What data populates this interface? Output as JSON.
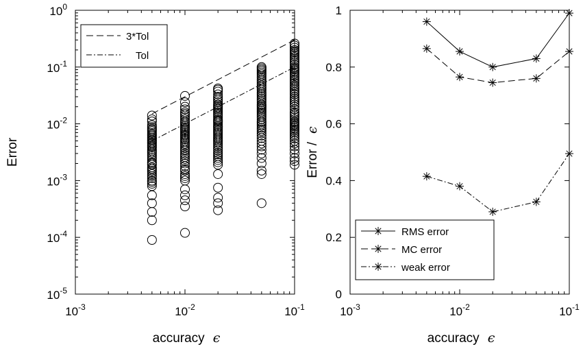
{
  "chart_data": [
    {
      "type": "scatter",
      "xscale": "log",
      "yscale": "log",
      "xlim": [
        0.001,
        0.1
      ],
      "ylim": [
        1e-05,
        1
      ],
      "xlabel": "accuracy",
      "xlabel_symbol": "ϵ",
      "ylabel": "Error",
      "x_ticks": [
        {
          "base": "10",
          "exp": "-3"
        },
        {
          "base": "10",
          "exp": "-2"
        },
        {
          "base": "10",
          "exp": "-1"
        }
      ],
      "y_ticks": [
        {
          "base": "10",
          "exp": "-5"
        },
        {
          "base": "10",
          "exp": "-4"
        },
        {
          "base": "10",
          "exp": "-3"
        },
        {
          "base": "10",
          "exp": "-2"
        },
        {
          "base": "10",
          "exp": "-1"
        },
        {
          "base": "10",
          "exp": "0"
        }
      ],
      "legend": {
        "position": "top-left",
        "entries": [
          "3*Tol",
          "Tol"
        ]
      },
      "reference_lines": [
        {
          "name": "3*Tol",
          "style": "dashed",
          "x": [
            0.005,
            0.1
          ],
          "y": [
            0.015,
            0.3
          ]
        },
        {
          "name": "Tol",
          "style": "dashdot",
          "x": [
            0.005,
            0.1
          ],
          "y": [
            0.005,
            0.1
          ]
        }
      ],
      "scatter_series": [
        {
          "x": 0.005,
          "y": [
            0.014,
            0.012,
            0.011,
            0.0095,
            0.0088,
            0.0082,
            0.0078,
            0.0074,
            0.0069,
            0.0065,
            0.0062,
            0.0058,
            0.0055,
            0.0052,
            0.005,
            0.0047,
            0.0045,
            0.0042,
            0.004,
            0.0038,
            0.0035,
            0.0033,
            0.0031,
            0.0029,
            0.0027,
            0.0025,
            0.0023,
            0.0021,
            0.002,
            0.0019,
            0.0017,
            0.0016,
            0.0015,
            0.0014,
            0.0013,
            0.0012,
            0.0011,
            0.001,
            0.00095,
            0.00088,
            0.0008,
            0.00055,
            0.0004,
            0.00028,
            0.0002,
            9e-05
          ]
        },
        {
          "x": 0.01,
          "y": [
            0.031,
            0.024,
            0.02,
            0.018,
            0.016,
            0.015,
            0.014,
            0.013,
            0.012,
            0.011,
            0.0105,
            0.0098,
            0.0092,
            0.0087,
            0.0082,
            0.0078,
            0.0074,
            0.007,
            0.0066,
            0.0063,
            0.006,
            0.0056,
            0.0053,
            0.005,
            0.0047,
            0.0044,
            0.0041,
            0.0038,
            0.0035,
            0.0033,
            0.003,
            0.0028,
            0.0026,
            0.0024,
            0.0022,
            0.002,
            0.0018,
            0.0016,
            0.0015,
            0.0013,
            0.0012,
            0.0011,
            0.001,
            0.0007,
            0.00055,
            0.00045,
            0.00035,
            0.00012
          ]
        },
        {
          "x": 0.02,
          "y": [
            0.042,
            0.04,
            0.037,
            0.033,
            0.03,
            0.028,
            0.026,
            0.024,
            0.022,
            0.021,
            0.02,
            0.019,
            0.018,
            0.017,
            0.016,
            0.015,
            0.014,
            0.013,
            0.012,
            0.0115,
            0.011,
            0.0105,
            0.0098,
            0.0092,
            0.0088,
            0.0083,
            0.0078,
            0.0074,
            0.007,
            0.0066,
            0.0062,
            0.0058,
            0.0055,
            0.0052,
            0.0049,
            0.0046,
            0.0043,
            0.004,
            0.0037,
            0.0034,
            0.0031,
            0.0029,
            0.0027,
            0.0025,
            0.0023,
            0.0021,
            0.0019,
            0.0013,
            0.00075,
            0.0005,
            0.0004,
            0.0003
          ]
        },
        {
          "x": 0.05,
          "y": [
            0.1,
            0.095,
            0.09,
            0.085,
            0.08,
            0.075,
            0.07,
            0.065,
            0.06,
            0.056,
            0.052,
            0.048,
            0.045,
            0.042,
            0.039,
            0.036,
            0.034,
            0.032,
            0.03,
            0.028,
            0.026,
            0.024,
            0.022,
            0.021,
            0.02,
            0.019,
            0.018,
            0.017,
            0.016,
            0.015,
            0.014,
            0.013,
            0.012,
            0.011,
            0.0105,
            0.0098,
            0.0092,
            0.0085,
            0.008,
            0.0074,
            0.0068,
            0.0062,
            0.0056,
            0.005,
            0.0045,
            0.004,
            0.0035,
            0.003,
            0.0025,
            0.002,
            0.0015,
            0.0013,
            0.0004
          ]
        },
        {
          "x": 0.1,
          "y": [
            0.26,
            0.24,
            0.22,
            0.2,
            0.19,
            0.18,
            0.17,
            0.16,
            0.15,
            0.14,
            0.13,
            0.12,
            0.11,
            0.1,
            0.095,
            0.09,
            0.085,
            0.08,
            0.075,
            0.07,
            0.065,
            0.06,
            0.056,
            0.052,
            0.048,
            0.045,
            0.042,
            0.039,
            0.036,
            0.033,
            0.03,
            0.028,
            0.026,
            0.024,
            0.022,
            0.02,
            0.018,
            0.016,
            0.015,
            0.014,
            0.013,
            0.012,
            0.011,
            0.0105,
            0.01,
            0.0095,
            0.009,
            0.0085,
            0.008,
            0.0075,
            0.007,
            0.0065,
            0.006,
            0.0055,
            0.005,
            0.0045,
            0.004,
            0.0035,
            0.003,
            0.0025,
            0.0022,
            0.0019
          ]
        }
      ]
    },
    {
      "type": "line",
      "xscale": "log",
      "xlim": [
        0.001,
        0.1
      ],
      "ylim": [
        0,
        1
      ],
      "xlabel": "accuracy",
      "xlabel_symbol": "ϵ",
      "ylabel": "Error  /",
      "ylabel_symbol": "ϵ",
      "x_ticks": [
        {
          "base": "10",
          "exp": "-3"
        },
        {
          "base": "10",
          "exp": "-2"
        },
        {
          "base": "10",
          "exp": "-1"
        }
      ],
      "y_ticks": [
        "0",
        "0.2",
        "0.4",
        "0.6",
        "0.8",
        "1"
      ],
      "legend": {
        "position": "bottom-left"
      },
      "x": [
        0.005,
        0.01,
        0.02,
        0.05,
        0.1
      ],
      "series": [
        {
          "name": "RMS error",
          "style": "solid",
          "marker": "asterisk",
          "values": [
            0.96,
            0.855,
            0.8,
            0.83,
            0.99
          ]
        },
        {
          "name": "MC error",
          "style": "dashed",
          "marker": "asterisk",
          "values": [
            0.865,
            0.765,
            0.745,
            0.76,
            0.855
          ]
        },
        {
          "name": "weak error",
          "style": "dashdot",
          "marker": "asterisk",
          "values": [
            0.415,
            0.38,
            0.29,
            0.325,
            0.495
          ]
        }
      ]
    }
  ]
}
